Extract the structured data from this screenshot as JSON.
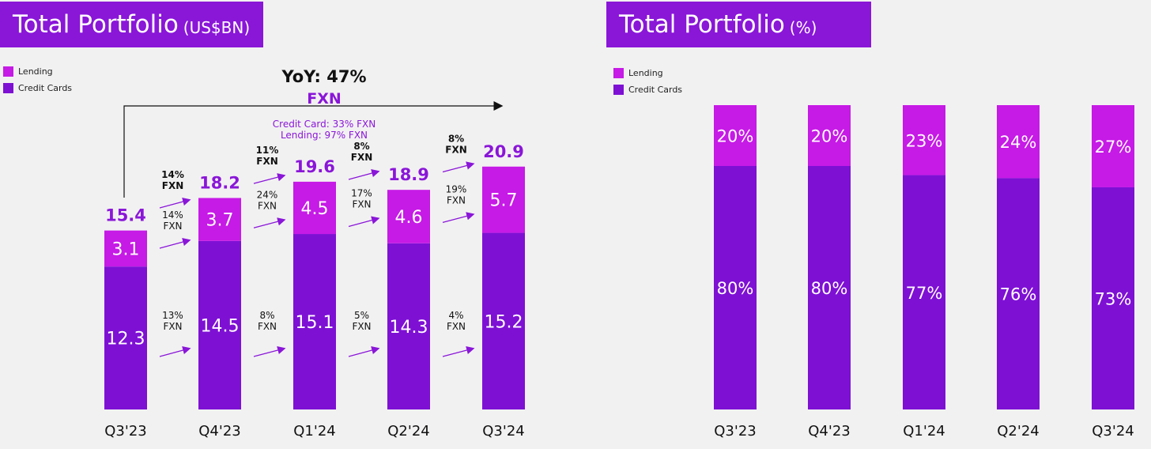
{
  "colors": {
    "lending": "#c61ae6",
    "credit_cards": "#7e10d4",
    "accent": "#8a16d8",
    "arrow": "#8a16d8"
  },
  "left_panel": {
    "title": "Total Portfolio",
    "title_unit": "(US$BN)",
    "legend": [
      "Lending",
      "Credit Cards"
    ],
    "yoy_label": "YoY: 47%",
    "yoy_fxn": "FXN",
    "yoy_note_1": "Credit Card: 33% FXN",
    "yoy_note_2": "Lending: 97% FXN",
    "growth_labels": [
      {
        "total": [
          "14%",
          "FXN"
        ],
        "lending": [
          "14%",
          "FXN"
        ],
        "credit": [
          "13%",
          "FXN"
        ]
      },
      {
        "total": [
          "11%",
          "FXN"
        ],
        "lending": [
          "24%",
          "FXN"
        ],
        "credit": [
          "8%",
          "FXN"
        ]
      },
      {
        "total": [
          "8%",
          "FXN"
        ],
        "lending": [
          "17%",
          "FXN"
        ],
        "credit": [
          "5%",
          "FXN"
        ]
      },
      {
        "total": [
          "8%",
          "FXN"
        ],
        "lending": [
          "19%",
          "FXN"
        ],
        "credit": [
          "4%",
          "FXN"
        ]
      }
    ]
  },
  "right_panel": {
    "title": "Total Portfolio",
    "title_unit": "(%)",
    "legend": [
      "Lending",
      "Credit Cards"
    ]
  },
  "chart_data": [
    {
      "type": "bar",
      "stacked": true,
      "title": "Total Portfolio (US$BN)",
      "categories": [
        "Q3'23",
        "Q4'23",
        "Q1'24",
        "Q2'24",
        "Q3'24"
      ],
      "series": [
        {
          "name": "Credit Cards",
          "values": [
            12.3,
            14.5,
            15.1,
            14.3,
            15.2
          ]
        },
        {
          "name": "Lending",
          "values": [
            3.1,
            3.7,
            4.5,
            4.6,
            5.7
          ]
        }
      ],
      "totals": [
        "15.4",
        "18.2",
        "19.6",
        "18.9",
        "20.9"
      ],
      "value_labels": {
        "Credit Cards": [
          "12.3",
          "14.5",
          "15.1",
          "14.3",
          "15.2"
        ],
        "Lending": [
          "3.1",
          "3.7",
          "4.5",
          "4.6",
          "5.7"
        ]
      },
      "legend_position": "top-left",
      "grid": false
    },
    {
      "type": "bar",
      "stacked": true,
      "title": "Total Portfolio (%)",
      "categories": [
        "Q3'23",
        "Q4'23",
        "Q1'24",
        "Q2'24",
        "Q3'24"
      ],
      "series": [
        {
          "name": "Credit Cards",
          "values": [
            80,
            80,
            77,
            76,
            73
          ]
        },
        {
          "name": "Lending",
          "values": [
            20,
            20,
            23,
            24,
            27
          ]
        }
      ],
      "value_labels": {
        "Credit Cards": [
          "80%",
          "80%",
          "77%",
          "76%",
          "73%"
        ],
        "Lending": [
          "20%",
          "20%",
          "23%",
          "24%",
          "27%"
        ]
      },
      "ylim": [
        0,
        100
      ],
      "legend_position": "top-left",
      "grid": false
    }
  ]
}
